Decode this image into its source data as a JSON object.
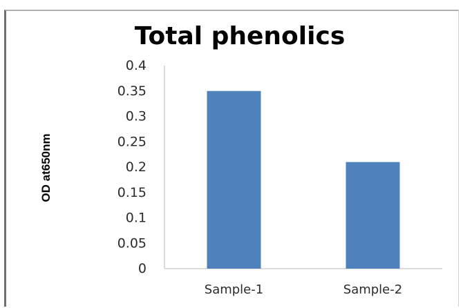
{
  "chart_data": {
    "type": "bar",
    "title": "Total phenolics",
    "xlabel": "",
    "ylabel": "OD at650nm",
    "categories": [
      "Sample-1",
      "Sample-2"
    ],
    "values": [
      0.35,
      0.21
    ],
    "ylim": [
      0,
      0.4
    ],
    "yticks": [
      "0",
      "0.05",
      "0.1",
      "0.15",
      "0.2",
      "0.25",
      "0.3",
      "0.35",
      "0.4"
    ],
    "grid": false,
    "legend": "none",
    "bar_color": "#4f81bd"
  }
}
